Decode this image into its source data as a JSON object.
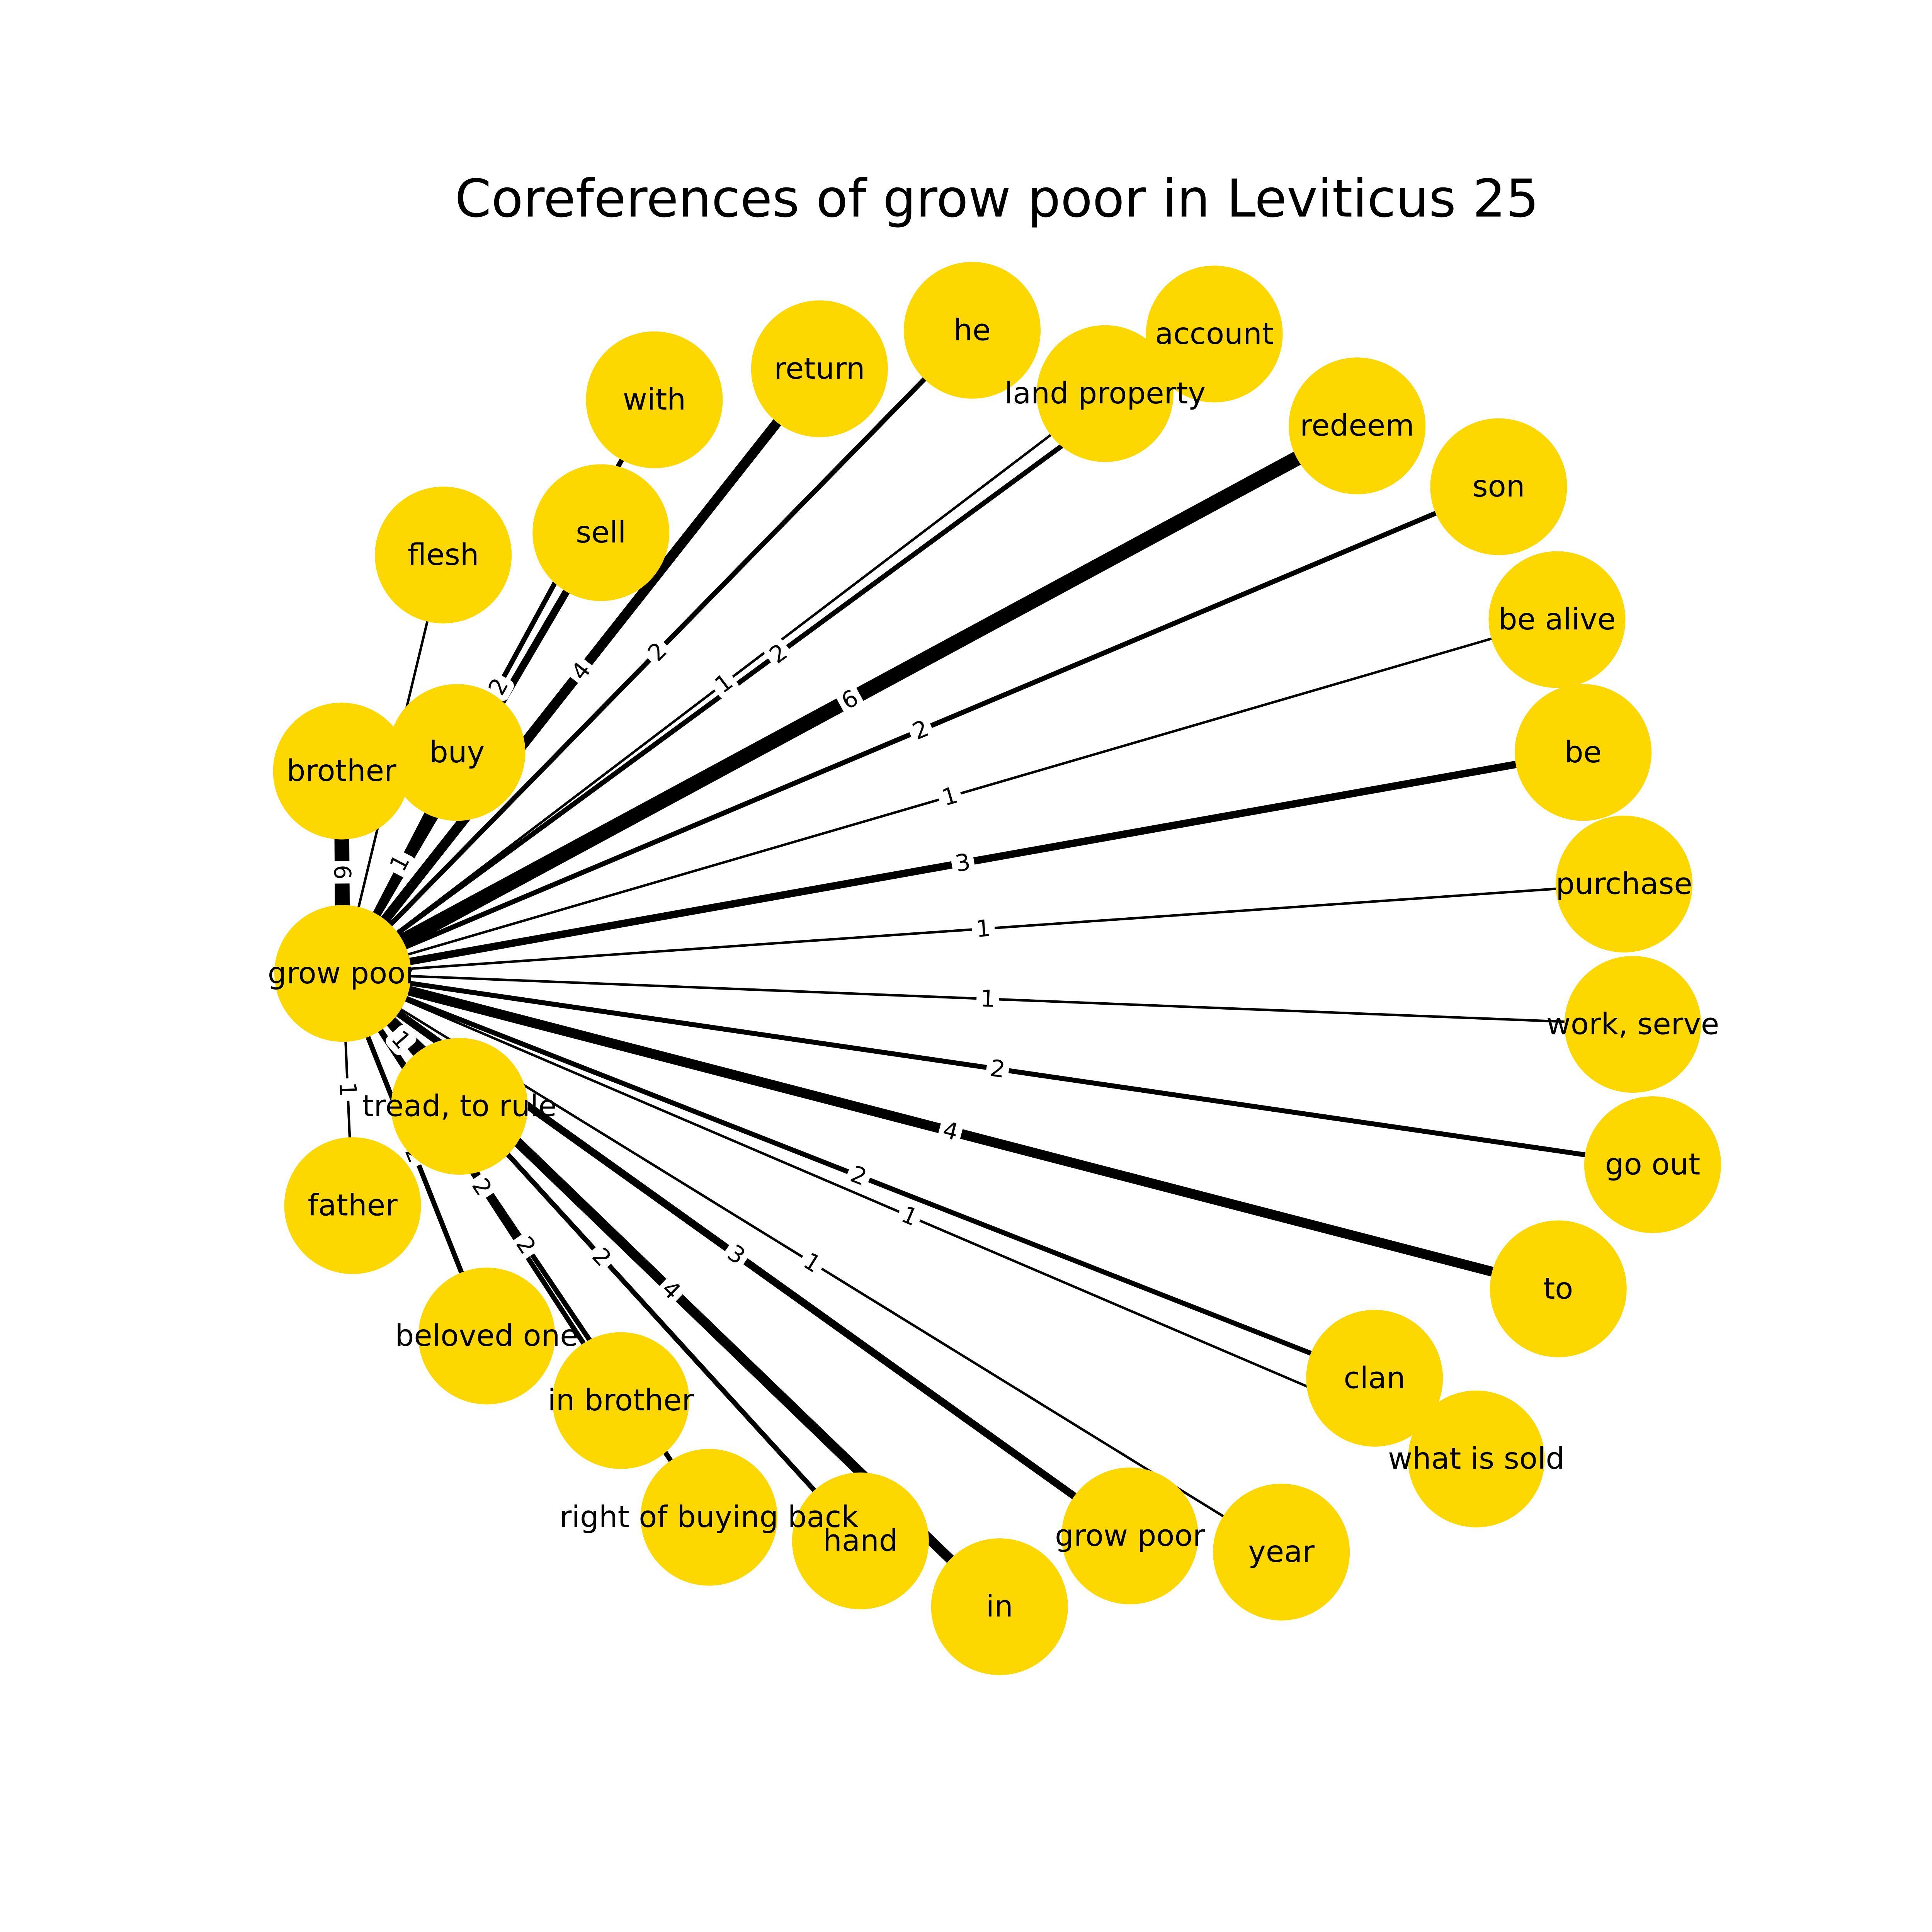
{
  "title": "Coreferences of grow poor in Leviticus 25",
  "nodes": [
    {
      "label": "grow poor"
    },
    {
      "label": "flesh"
    },
    {
      "label": "with"
    },
    {
      "label": "return"
    },
    {
      "label": "he"
    },
    {
      "label": "account"
    },
    {
      "label": "land property"
    },
    {
      "label": "redeem"
    },
    {
      "label": "son"
    },
    {
      "label": "be alive"
    },
    {
      "label": "be"
    },
    {
      "label": "purchase"
    },
    {
      "label": "work, serve"
    },
    {
      "label": "go out"
    },
    {
      "label": "to"
    },
    {
      "label": "clan"
    },
    {
      "label": "what is sold"
    },
    {
      "label": "year"
    },
    {
      "label": "grow poor"
    },
    {
      "label": "in"
    },
    {
      "label": "hand"
    },
    {
      "label": "right of buying back"
    },
    {
      "label": "in brother"
    },
    {
      "label": "beloved one"
    },
    {
      "label": "father"
    },
    {
      "label": "tread, to rule"
    },
    {
      "label": "brother"
    },
    {
      "label": "buy"
    },
    {
      "label": "sell"
    }
  ],
  "edges": [
    {
      "source": 0,
      "target": 1,
      "weight": 1
    },
    {
      "source": 0,
      "target": 2,
      "weight": 2
    },
    {
      "source": 0,
      "target": 3,
      "weight": 4
    },
    {
      "source": 0,
      "target": 4,
      "weight": 2
    },
    {
      "source": 0,
      "target": 5,
      "weight": 2
    },
    {
      "source": 0,
      "target": 6,
      "weight": 1
    },
    {
      "source": 0,
      "target": 7,
      "weight": 6
    },
    {
      "source": 0,
      "target": 8,
      "weight": 2
    },
    {
      "source": 0,
      "target": 9,
      "weight": 1
    },
    {
      "source": 0,
      "target": 10,
      "weight": 3
    },
    {
      "source": 0,
      "target": 11,
      "weight": 1
    },
    {
      "source": 0,
      "target": 12,
      "weight": 1
    },
    {
      "source": 0,
      "target": 13,
      "weight": 2
    },
    {
      "source": 0,
      "target": 14,
      "weight": 4
    },
    {
      "source": 0,
      "target": 15,
      "weight": 2
    },
    {
      "source": 0,
      "target": 16,
      "weight": 1
    },
    {
      "source": 0,
      "target": 17,
      "weight": 1
    },
    {
      "source": 0,
      "target": 18,
      "weight": 3
    },
    {
      "source": 0,
      "target": 19,
      "weight": 4
    },
    {
      "source": 0,
      "target": 20,
      "weight": 2
    },
    {
      "source": 0,
      "target": 21,
      "weight": 2
    },
    {
      "source": 0,
      "target": 22,
      "weight": 2
    },
    {
      "source": 0,
      "target": 23,
      "weight": 2
    },
    {
      "source": 0,
      "target": 24,
      "weight": 1
    },
    {
      "source": 0,
      "target": 25,
      "weight": 1
    },
    {
      "source": 0,
      "target": 26,
      "weight": 6
    },
    {
      "source": 0,
      "target": 27,
      "weight": 1
    },
    {
      "source": 0,
      "target": 28,
      "weight": 3
    }
  ]
}
